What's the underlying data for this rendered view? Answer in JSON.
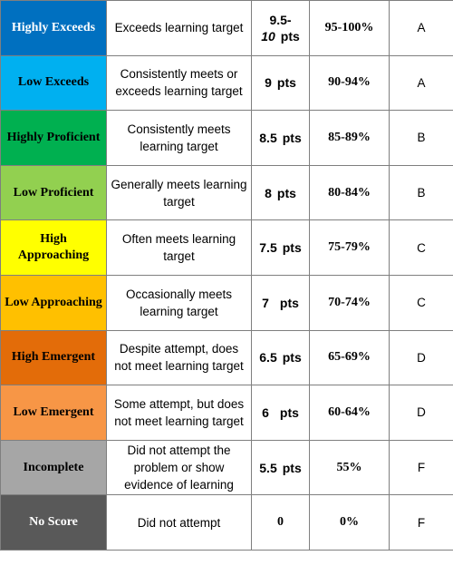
{
  "rows": [
    {
      "level": "Highly Exceeds",
      "bg": "#0070C0",
      "text_color": "#ffffff",
      "description": "Exceeds learning target",
      "points_line1": "9.5-",
      "points_line2": "10",
      "points_unit": "pts",
      "percent": "95-100%",
      "grade": "A"
    },
    {
      "level": "Low Exceeds",
      "bg": "#00B0F0",
      "text_color": "#000000",
      "description": "Consistently meets or exceeds learning target",
      "points": "9",
      "points_unit": "pts",
      "percent": "90-94%",
      "grade": "A"
    },
    {
      "level": "Highly Proficient",
      "bg": "#00B050",
      "text_color": "#000000",
      "description": "Consistently meets learning target",
      "points": "8.5",
      "points_unit": "pts",
      "percent": "85-89%",
      "grade": "B"
    },
    {
      "level": "Low Proficient",
      "bg": "#92D050",
      "text_color": "#000000",
      "description": "Generally meets learning target",
      "points": "8",
      "points_unit": "pts",
      "percent": "80-84%",
      "grade": "B"
    },
    {
      "level": "High Approaching",
      "bg": "#FFFF00",
      "text_color": "#000000",
      "description": "Often meets learning target",
      "points": "7.5",
      "points_unit": "pts",
      "percent": "75-79%",
      "grade": "C"
    },
    {
      "level": "Low Approaching",
      "bg": "#FFC000",
      "text_color": "#000000",
      "description": "Occasionally meets learning target",
      "points": "7",
      "points_unit": "pts",
      "percent": "70-74%",
      "grade": "C"
    },
    {
      "level": "High Emergent",
      "bg": "#E36C09",
      "text_color": "#000000",
      "description": "Despite attempt, does not meet learning target",
      "points": "6.5",
      "points_unit": "pts",
      "percent": "65-69%",
      "grade": "D"
    },
    {
      "level": "Low Emergent",
      "bg": "#F79646",
      "text_color": "#000000",
      "description": "Some attempt, but does not meet learning target",
      "points": "6",
      "points_unit": "pts",
      "percent": "60-64%",
      "grade": "D"
    },
    {
      "level": "Incomplete",
      "bg": "#A6A6A6",
      "text_color": "#000000",
      "description": "Did not attempt the problem or show evidence of learning",
      "points": "5.5",
      "points_unit": "pts",
      "percent": "55%",
      "grade": "F"
    },
    {
      "level": "No Score",
      "bg": "#595959",
      "text_color": "#ffffff",
      "description": "Did not attempt",
      "points": "0",
      "points_unit": "",
      "percent": "0%",
      "grade": "F"
    }
  ]
}
